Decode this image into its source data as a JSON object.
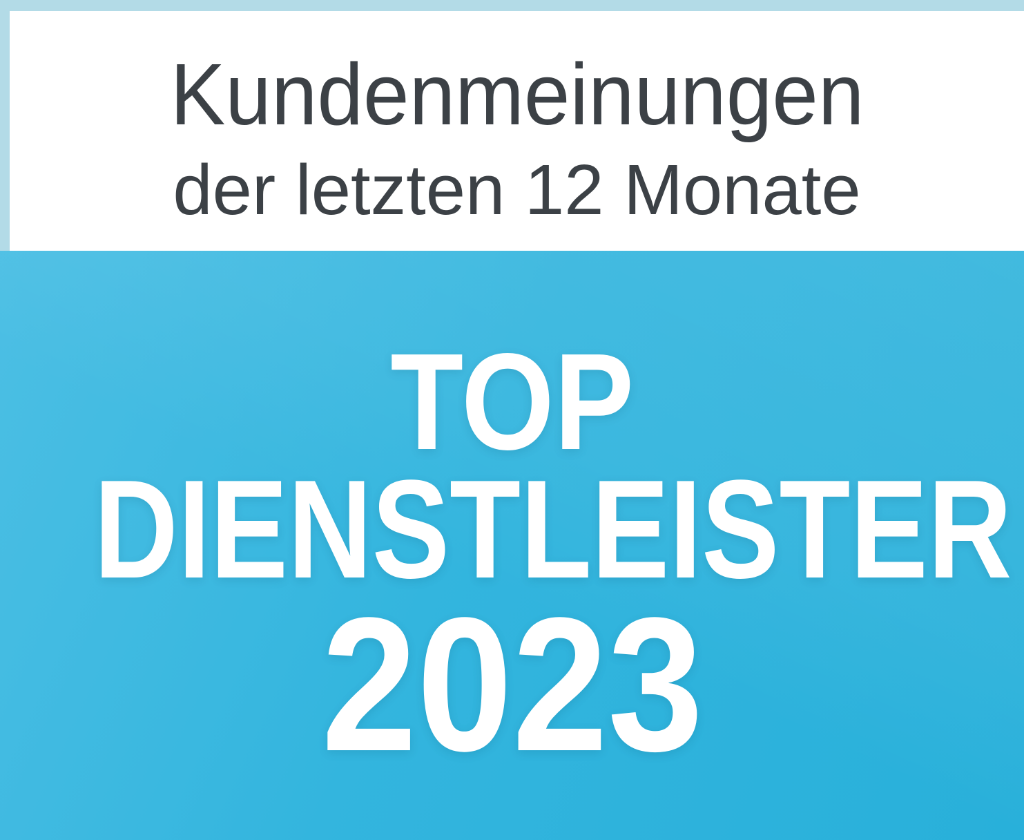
{
  "badge": {
    "header": {
      "title": "Kundenmeinungen",
      "subtitle": "der letzten 12 Monate"
    },
    "award": {
      "top_label": "TOP",
      "category_label": "DIENSTLEISTER",
      "year": "2023"
    },
    "colors": {
      "border_light_blue": "#b3dbe7",
      "header_bg": "#ffffff",
      "header_text": "#3c4146",
      "award_bg_start": "#4cbfe4",
      "award_bg_mid": "#33b5de",
      "award_bg_end": "#28b0da",
      "award_text": "#ffffff"
    }
  }
}
